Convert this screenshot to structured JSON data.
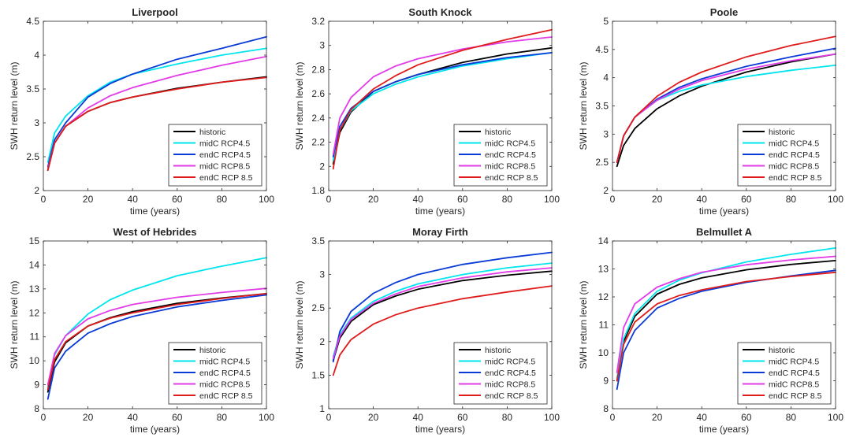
{
  "chart_data": [
    {
      "type": "line",
      "title": "Liverpool",
      "xlabel": "time (years)",
      "ylabel": "SWH return level (m)",
      "xlim": [
        0,
        100
      ],
      "ylim": [
        2,
        4.5
      ],
      "xticks": [
        "0",
        "20",
        "40",
        "60",
        "80",
        "100"
      ],
      "yticks": [
        "2",
        "2.5",
        "3",
        "3.5",
        "4",
        "4.5"
      ],
      "legend_position": "bottom-right",
      "x": [
        2,
        5,
        10,
        20,
        30,
        40,
        60,
        80,
        100
      ],
      "series": [
        {
          "name": "historic",
          "color": "#000000",
          "values": [
            2.3,
            2.7,
            2.95,
            3.17,
            3.3,
            3.38,
            3.51,
            3.6,
            3.68
          ]
        },
        {
          "name": "midC RCP4.5",
          "color": "#00e5ee",
          "values": [
            2.42,
            2.85,
            3.1,
            3.4,
            3.6,
            3.72,
            3.87,
            4.0,
            4.1
          ]
        },
        {
          "name": "endC RCP4.5",
          "color": "#0a3bd6",
          "values": [
            2.35,
            2.75,
            3.0,
            3.38,
            3.58,
            3.72,
            3.94,
            4.1,
            4.27
          ]
        },
        {
          "name": "midC RCP8.5",
          "color": "#e23be8",
          "values": [
            2.32,
            2.7,
            2.95,
            3.22,
            3.4,
            3.52,
            3.7,
            3.85,
            3.98
          ]
        },
        {
          "name": "endC RCP 8.5",
          "color": "#e01b1b",
          "values": [
            2.3,
            2.7,
            2.95,
            3.17,
            3.3,
            3.38,
            3.5,
            3.6,
            3.67
          ]
        }
      ]
    },
    {
      "type": "line",
      "title": "South Knock",
      "xlabel": "time (years)",
      "ylabel": "SWH return level (m)",
      "xlim": [
        0,
        100
      ],
      "ylim": [
        1.8,
        3.2
      ],
      "xticks": [
        "0",
        "20",
        "40",
        "60",
        "80",
        "100"
      ],
      "yticks": [
        "1.8",
        "2",
        "2.2",
        "2.4",
        "2.6",
        "2.8",
        "3",
        "3.2"
      ],
      "legend_position": "bottom-right",
      "x": [
        2,
        5,
        10,
        20,
        30,
        40,
        60,
        80,
        100
      ],
      "series": [
        {
          "name": "historic",
          "color": "#000000",
          "values": [
            2.02,
            2.28,
            2.45,
            2.62,
            2.7,
            2.76,
            2.86,
            2.93,
            2.98
          ]
        },
        {
          "name": "midC RCP4.5",
          "color": "#00e5ee",
          "values": [
            2.05,
            2.3,
            2.46,
            2.6,
            2.68,
            2.74,
            2.83,
            2.89,
            2.94
          ]
        },
        {
          "name": "endC RCP4.5",
          "color": "#0a3bd6",
          "values": [
            2.08,
            2.33,
            2.48,
            2.62,
            2.7,
            2.76,
            2.84,
            2.9,
            2.94
          ]
        },
        {
          "name": "midC RCP8.5",
          "color": "#e23be8",
          "values": [
            2.1,
            2.4,
            2.57,
            2.74,
            2.83,
            2.89,
            2.97,
            3.03,
            3.07
          ]
        },
        {
          "name": "endC RCP 8.5",
          "color": "#e01b1b",
          "values": [
            1.98,
            2.3,
            2.47,
            2.64,
            2.75,
            2.84,
            2.96,
            3.05,
            3.13
          ]
        }
      ]
    },
    {
      "type": "line",
      "title": "Poole",
      "xlabel": "time (years)",
      "ylabel": "SWH return level (m)",
      "xlim": [
        0,
        100
      ],
      "ylim": [
        2,
        5
      ],
      "xticks": [
        "0",
        "20",
        "40",
        "60",
        "80",
        "100"
      ],
      "yticks": [
        "2",
        "2.5",
        "3",
        "3.5",
        "4",
        "4.5",
        "5"
      ],
      "legend_position": "bottom-right",
      "x": [
        2,
        5,
        10,
        20,
        30,
        40,
        60,
        80,
        100
      ],
      "series": [
        {
          "name": "historic",
          "color": "#000000",
          "values": [
            2.43,
            2.8,
            3.1,
            3.45,
            3.68,
            3.85,
            4.1,
            4.28,
            4.42
          ]
        },
        {
          "name": "midC RCP4.5",
          "color": "#00e5ee",
          "values": [
            2.5,
            2.97,
            3.3,
            3.6,
            3.76,
            3.87,
            4.02,
            4.13,
            4.22
          ]
        },
        {
          "name": "endC RCP4.5",
          "color": "#0a3bd6",
          "values": [
            2.5,
            2.97,
            3.3,
            3.62,
            3.83,
            3.98,
            4.2,
            4.37,
            4.52
          ]
        },
        {
          "name": "midC RCP8.5",
          "color": "#e23be8",
          "values": [
            2.5,
            2.97,
            3.3,
            3.6,
            3.8,
            3.95,
            4.15,
            4.3,
            4.42
          ]
        },
        {
          "name": "endC RCP 8.5",
          "color": "#e01b1b",
          "values": [
            2.5,
            2.97,
            3.3,
            3.67,
            3.92,
            4.1,
            4.37,
            4.57,
            4.73
          ]
        }
      ]
    },
    {
      "type": "line",
      "title": "West of Hebrides",
      "xlabel": "time (years)",
      "ylabel": "SWH return level (m)",
      "xlim": [
        0,
        100
      ],
      "ylim": [
        8,
        15
      ],
      "xticks": [
        "0",
        "20",
        "40",
        "60",
        "80",
        "100"
      ],
      "yticks": [
        "8",
        "9",
        "10",
        "11",
        "12",
        "13",
        "14",
        "15"
      ],
      "legend_position": "bottom-right",
      "x": [
        2,
        5,
        10,
        20,
        30,
        40,
        60,
        80,
        100
      ],
      "series": [
        {
          "name": "historic",
          "color": "#000000",
          "values": [
            8.7,
            9.95,
            10.75,
            11.45,
            11.8,
            12.05,
            12.4,
            12.62,
            12.8
          ]
        },
        {
          "name": "midC RCP4.5",
          "color": "#00e5ee",
          "values": [
            8.9,
            10.25,
            11.05,
            11.95,
            12.55,
            12.95,
            13.55,
            13.95,
            14.3
          ]
        },
        {
          "name": "endC RCP4.5",
          "color": "#0a3bd6",
          "values": [
            8.4,
            9.7,
            10.4,
            11.15,
            11.55,
            11.85,
            12.25,
            12.52,
            12.75
          ]
        },
        {
          "name": "midC RCP8.5",
          "color": "#e23be8",
          "values": [
            9.0,
            10.3,
            11.05,
            11.75,
            12.1,
            12.35,
            12.65,
            12.85,
            13.02
          ]
        },
        {
          "name": "endC RCP 8.5",
          "color": "#e01b1b",
          "values": [
            8.8,
            10.05,
            10.8,
            11.45,
            11.78,
            12.0,
            12.35,
            12.6,
            12.8
          ]
        }
      ]
    },
    {
      "type": "line",
      "title": "Moray Firth",
      "xlabel": "time (years)",
      "ylabel": "SWH return level (m)",
      "xlim": [
        0,
        100
      ],
      "ylim": [
        1,
        3.5
      ],
      "xticks": [
        "0",
        "20",
        "40",
        "60",
        "80",
        "100"
      ],
      "yticks": [
        "1",
        "1.5",
        "2",
        "2.5",
        "3",
        "3.5"
      ],
      "legend_position": "bottom-right",
      "x": [
        2,
        5,
        10,
        20,
        30,
        40,
        60,
        80,
        100
      ],
      "series": [
        {
          "name": "historic",
          "color": "#000000",
          "values": [
            1.72,
            2.05,
            2.3,
            2.55,
            2.68,
            2.78,
            2.91,
            2.99,
            3.05
          ]
        },
        {
          "name": "midC RCP4.5",
          "color": "#00e5ee",
          "values": [
            1.78,
            2.1,
            2.35,
            2.6,
            2.75,
            2.86,
            3.0,
            3.1,
            3.17
          ]
        },
        {
          "name": "endC RCP4.5",
          "color": "#0a3bd6",
          "values": [
            1.7,
            2.15,
            2.45,
            2.72,
            2.88,
            3.0,
            3.15,
            3.25,
            3.33
          ]
        },
        {
          "name": "midC RCP8.5",
          "color": "#e23be8",
          "values": [
            1.75,
            2.08,
            2.33,
            2.57,
            2.71,
            2.82,
            2.95,
            3.04,
            3.1
          ]
        },
        {
          "name": "endC RCP 8.5",
          "color": "#e01b1b",
          "values": [
            1.5,
            1.8,
            2.03,
            2.26,
            2.4,
            2.5,
            2.64,
            2.74,
            2.83
          ]
        }
      ]
    },
    {
      "type": "line",
      "title": "Belmullet A",
      "xlabel": "time (years)",
      "ylabel": "SWH return level (m)",
      "xlim": [
        0,
        100
      ],
      "ylim": [
        8,
        14
      ],
      "xticks": [
        "0",
        "20",
        "40",
        "60",
        "80",
        "100"
      ],
      "yticks": [
        "8",
        "9",
        "10",
        "11",
        "12",
        "13",
        "14"
      ],
      "legend_position": "bottom-right",
      "x": [
        2,
        5,
        10,
        20,
        30,
        40,
        60,
        80,
        100
      ],
      "series": [
        {
          "name": "historic",
          "color": "#000000",
          "values": [
            9.0,
            10.4,
            11.3,
            12.1,
            12.45,
            12.68,
            12.97,
            13.16,
            13.3
          ]
        },
        {
          "name": "midC RCP4.5",
          "color": "#00e5ee",
          "values": [
            9.1,
            10.5,
            11.4,
            12.2,
            12.6,
            12.86,
            13.25,
            13.52,
            13.75
          ]
        },
        {
          "name": "endC RCP4.5",
          "color": "#0a3bd6",
          "values": [
            8.7,
            10.0,
            10.8,
            11.6,
            11.95,
            12.2,
            12.52,
            12.75,
            12.95
          ]
        },
        {
          "name": "midC RCP8.5",
          "color": "#e23be8",
          "values": [
            9.3,
            10.9,
            11.75,
            12.35,
            12.65,
            12.88,
            13.15,
            13.32,
            13.45
          ]
        },
        {
          "name": "endC RCP 8.5",
          "color": "#e01b1b",
          "values": [
            9.0,
            10.3,
            11.1,
            11.75,
            12.05,
            12.25,
            12.55,
            12.73,
            12.88
          ]
        }
      ]
    }
  ]
}
